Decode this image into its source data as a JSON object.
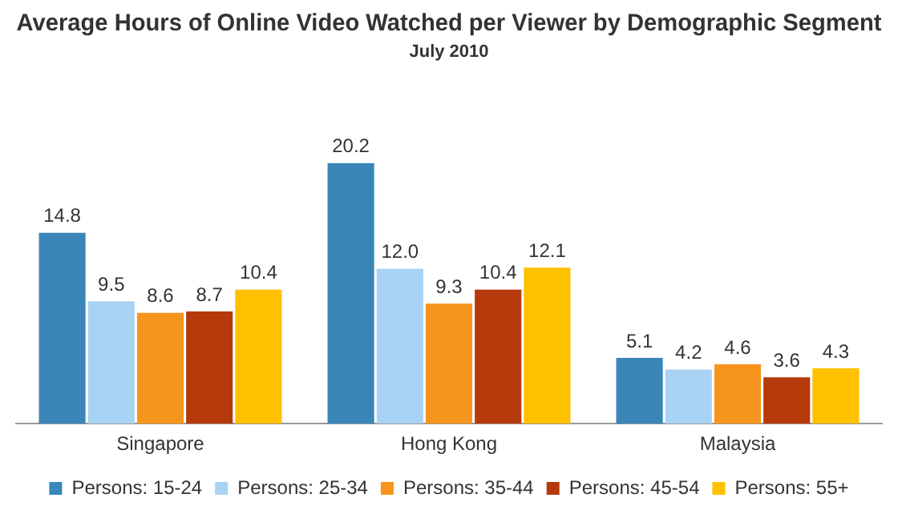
{
  "chart_data": {
    "type": "bar",
    "title": "Average Hours of Online Video Watched per Viewer by Demographic Segment",
    "subtitle": "July 2010",
    "categories": [
      "Singapore",
      "Hong Kong",
      "Malaysia"
    ],
    "series": [
      {
        "name": "Persons: 15-24",
        "color": "#3a86b8",
        "values": [
          14.8,
          20.2,
          5.1
        ],
        "value_labels": [
          "14.8",
          "20.2",
          "5.1"
        ]
      },
      {
        "name": "Persons: 25-34",
        "color": "#a8d3f5",
        "values": [
          9.5,
          12.0,
          4.2
        ],
        "value_labels": [
          "9.5",
          "12.0",
          "4.2"
        ]
      },
      {
        "name": "Persons: 35-44",
        "color": "#f7941d",
        "values": [
          8.6,
          9.3,
          4.6
        ],
        "value_labels": [
          "8.6",
          "9.3",
          "4.6"
        ]
      },
      {
        "name": "Persons: 45-54",
        "color": "#b53a0b",
        "values": [
          8.7,
          10.4,
          3.6
        ],
        "value_labels": [
          "8.7",
          "10.4",
          "3.6"
        ]
      },
      {
        "name": "Persons: 55+",
        "color": "#ffc000",
        "values": [
          10.4,
          12.1,
          4.3
        ],
        "value_labels": [
          "10.4",
          "12.1",
          "4.3"
        ]
      }
    ],
    "legend": "bottom",
    "grid": false
  }
}
